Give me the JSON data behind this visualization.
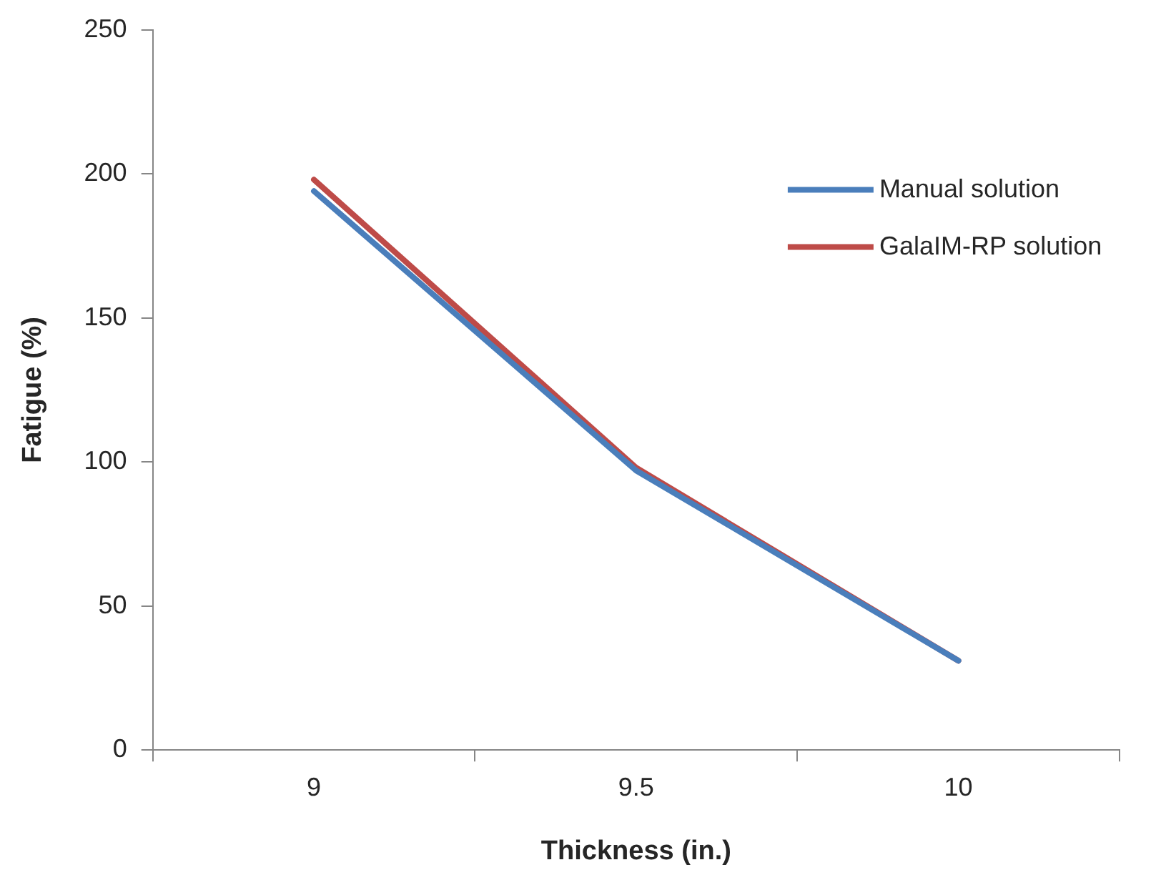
{
  "chart_data": {
    "type": "line",
    "xlabel": "Thickness (in.)",
    "ylabel": "Fatigue (%)",
    "categories": [
      "9",
      "9.5",
      "10"
    ],
    "series": [
      {
        "name": "Manual solution",
        "color": "#4a7ebb",
        "values": [
          194,
          97,
          31
        ]
      },
      {
        "name": "GalaIM-RP solution",
        "color": "#be4b48",
        "values": [
          198,
          98,
          31
        ]
      }
    ],
    "ylim": [
      0,
      250
    ],
    "yticks": [
      0,
      50,
      100,
      150,
      200,
      250
    ],
    "grid": false,
    "legend": "top right",
    "marker": "none",
    "line_style": "solid"
  }
}
